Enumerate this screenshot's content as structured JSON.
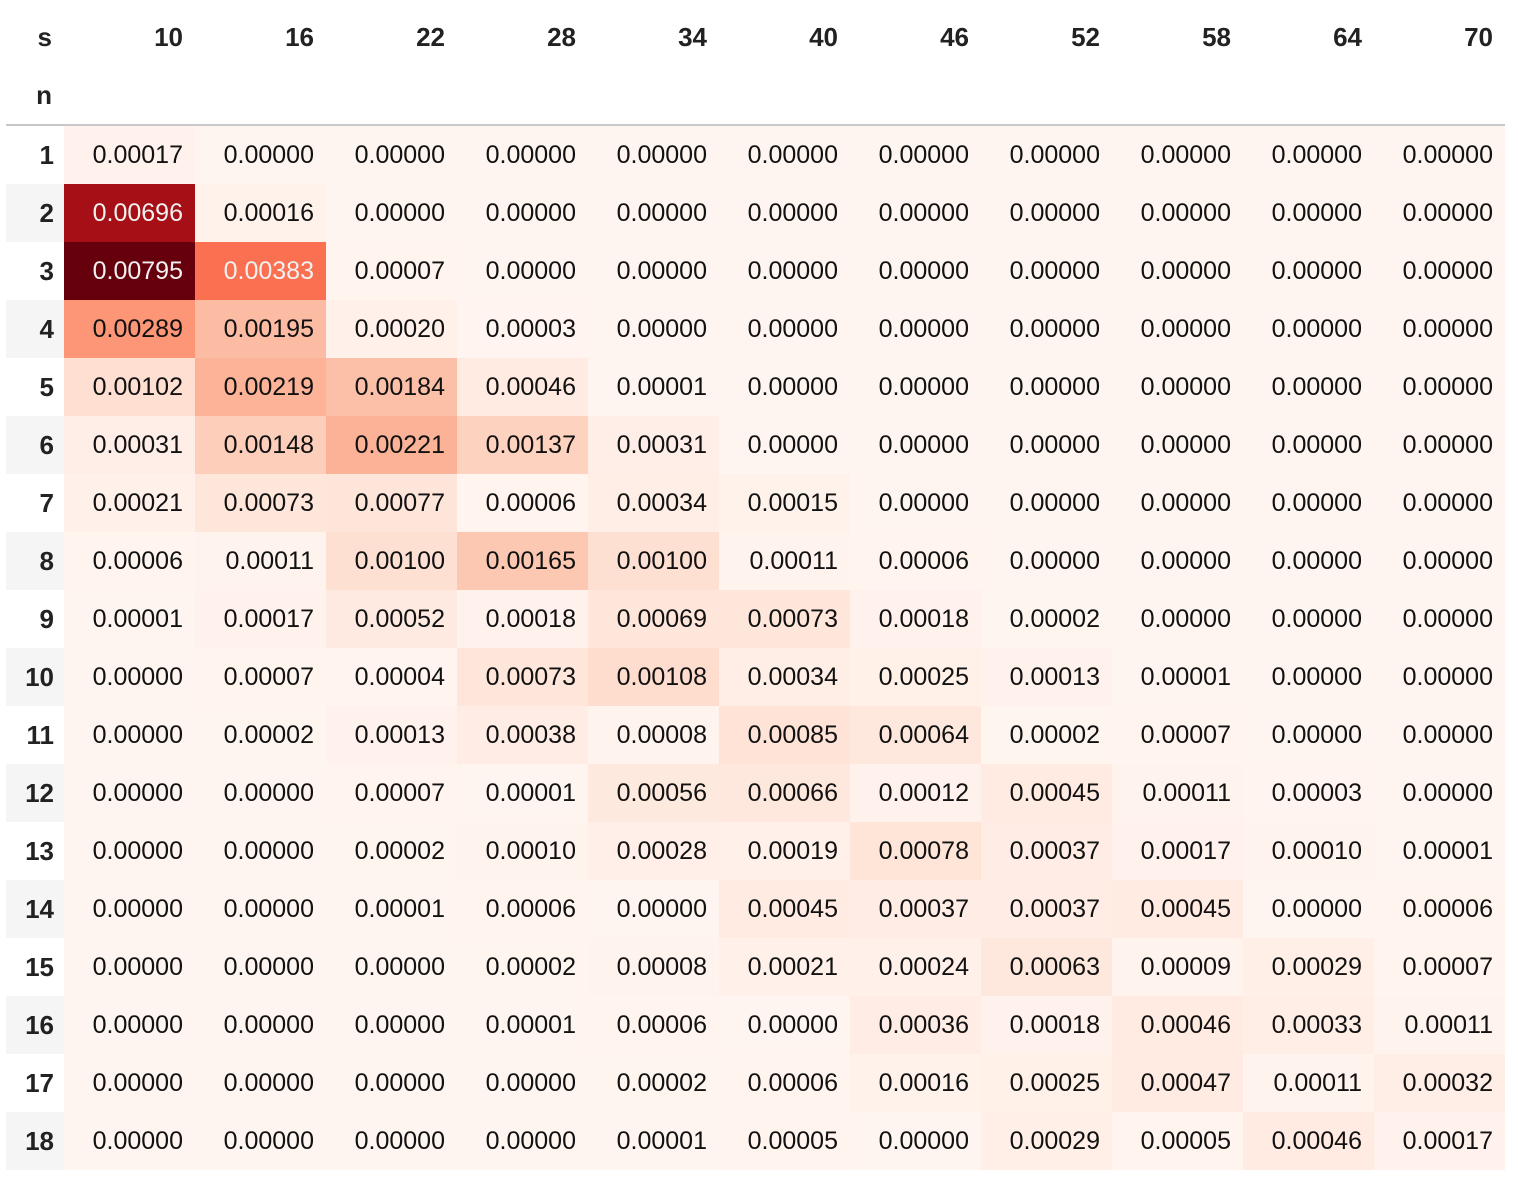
{
  "table": {
    "column_index_name": "s",
    "row_index_name": "n",
    "columns": [
      "10",
      "16",
      "22",
      "28",
      "34",
      "40",
      "46",
      "52",
      "58",
      "64",
      "70"
    ],
    "rows": [
      {
        "n": "1",
        "cells": [
          "0.00017",
          "0.00000",
          "0.00000",
          "0.00000",
          "0.00000",
          "0.00000",
          "0.00000",
          "0.00000",
          "0.00000",
          "0.00000",
          "0.00000"
        ]
      },
      {
        "n": "2",
        "cells": [
          "0.00696",
          "0.00016",
          "0.00000",
          "0.00000",
          "0.00000",
          "0.00000",
          "0.00000",
          "0.00000",
          "0.00000",
          "0.00000",
          "0.00000"
        ]
      },
      {
        "n": "3",
        "cells": [
          "0.00795",
          "0.00383",
          "0.00007",
          "0.00000",
          "0.00000",
          "0.00000",
          "0.00000",
          "0.00000",
          "0.00000",
          "0.00000",
          "0.00000"
        ]
      },
      {
        "n": "4",
        "cells": [
          "0.00289",
          "0.00195",
          "0.00020",
          "0.00003",
          "0.00000",
          "0.00000",
          "0.00000",
          "0.00000",
          "0.00000",
          "0.00000",
          "0.00000"
        ]
      },
      {
        "n": "5",
        "cells": [
          "0.00102",
          "0.00219",
          "0.00184",
          "0.00046",
          "0.00001",
          "0.00000",
          "0.00000",
          "0.00000",
          "0.00000",
          "0.00000",
          "0.00000"
        ]
      },
      {
        "n": "6",
        "cells": [
          "0.00031",
          "0.00148",
          "0.00221",
          "0.00137",
          "0.00031",
          "0.00000",
          "0.00000",
          "0.00000",
          "0.00000",
          "0.00000",
          "0.00000"
        ]
      },
      {
        "n": "7",
        "cells": [
          "0.00021",
          "0.00073",
          "0.00077",
          "0.00006",
          "0.00034",
          "0.00015",
          "0.00000",
          "0.00000",
          "0.00000",
          "0.00000",
          "0.00000"
        ]
      },
      {
        "n": "8",
        "cells": [
          "0.00006",
          "0.00011",
          "0.00100",
          "0.00165",
          "0.00100",
          "0.00011",
          "0.00006",
          "0.00000",
          "0.00000",
          "0.00000",
          "0.00000"
        ]
      },
      {
        "n": "9",
        "cells": [
          "0.00001",
          "0.00017",
          "0.00052",
          "0.00018",
          "0.00069",
          "0.00073",
          "0.00018",
          "0.00002",
          "0.00000",
          "0.00000",
          "0.00000"
        ]
      },
      {
        "n": "10",
        "cells": [
          "0.00000",
          "0.00007",
          "0.00004",
          "0.00073",
          "0.00108",
          "0.00034",
          "0.00025",
          "0.00013",
          "0.00001",
          "0.00000",
          "0.00000"
        ]
      },
      {
        "n": "11",
        "cells": [
          "0.00000",
          "0.00002",
          "0.00013",
          "0.00038",
          "0.00008",
          "0.00085",
          "0.00064",
          "0.00002",
          "0.00007",
          "0.00000",
          "0.00000"
        ]
      },
      {
        "n": "12",
        "cells": [
          "0.00000",
          "0.00000",
          "0.00007",
          "0.00001",
          "0.00056",
          "0.00066",
          "0.00012",
          "0.00045",
          "0.00011",
          "0.00003",
          "0.00000"
        ]
      },
      {
        "n": "13",
        "cells": [
          "0.00000",
          "0.00000",
          "0.00002",
          "0.00010",
          "0.00028",
          "0.00019",
          "0.00078",
          "0.00037",
          "0.00017",
          "0.00010",
          "0.00001"
        ]
      },
      {
        "n": "14",
        "cells": [
          "0.00000",
          "0.00000",
          "0.00001",
          "0.00006",
          "0.00000",
          "0.00045",
          "0.00037",
          "0.00037",
          "0.00045",
          "0.00000",
          "0.00006"
        ]
      },
      {
        "n": "15",
        "cells": [
          "0.00000",
          "0.00000",
          "0.00000",
          "0.00002",
          "0.00008",
          "0.00021",
          "0.00024",
          "0.00063",
          "0.00009",
          "0.00029",
          "0.00007"
        ]
      },
      {
        "n": "16",
        "cells": [
          "0.00000",
          "0.00000",
          "0.00000",
          "0.00001",
          "0.00006",
          "0.00000",
          "0.00036",
          "0.00018",
          "0.00046",
          "0.00033",
          "0.00011"
        ]
      },
      {
        "n": "17",
        "cells": [
          "0.00000",
          "0.00000",
          "0.00000",
          "0.00000",
          "0.00002",
          "0.00006",
          "0.00016",
          "0.00025",
          "0.00047",
          "0.00011",
          "0.00032"
        ]
      },
      {
        "n": "18",
        "cells": [
          "0.00000",
          "0.00000",
          "0.00000",
          "0.00000",
          "0.00001",
          "0.00005",
          "0.00000",
          "0.00029",
          "0.00005",
          "0.00046",
          "0.00017"
        ]
      }
    ]
  },
  "colormap": {
    "name": "Reds",
    "vmin": 0.0,
    "vmax": 0.00795,
    "stops": [
      "#fff5f0",
      "#fee0d2",
      "#fcbba1",
      "#fc9272",
      "#fb6a4a",
      "#ef3b2c",
      "#cb181d",
      "#a50f15",
      "#67000d"
    ],
    "dark_text_color": "#111111",
    "light_text_color": "#f1f1f1"
  }
}
